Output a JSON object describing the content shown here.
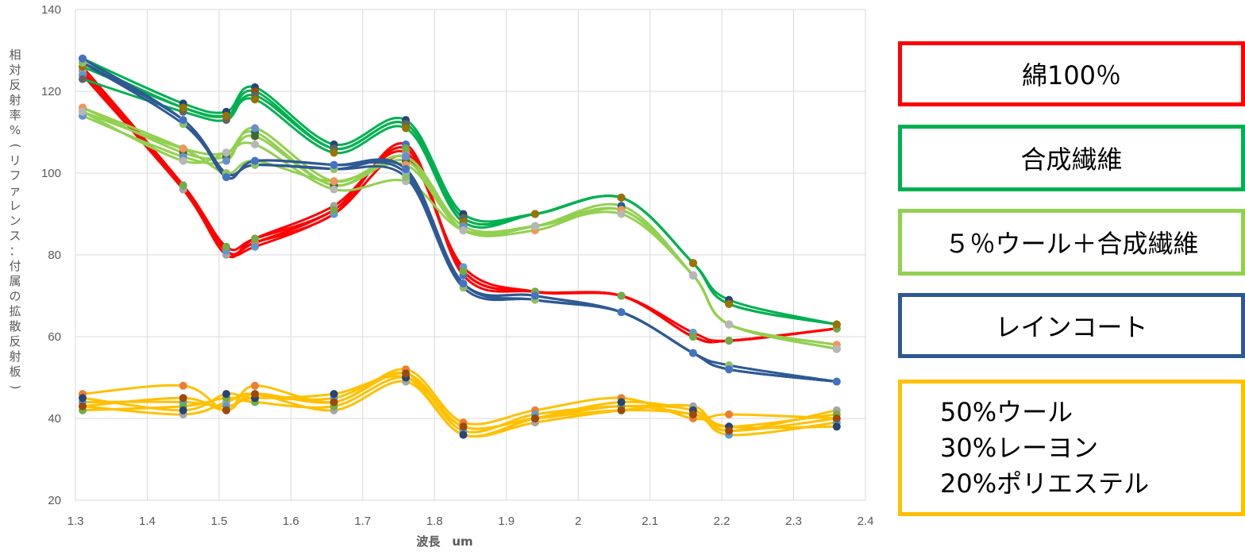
{
  "chart_data": {
    "type": "line",
    "xlabel": "波長　um",
    "ylabel": "相対反射率%(リファレンス：付属の拡散反射板)",
    "xlim": [
      1.3,
      2.4
    ],
    "ylim": [
      20,
      140
    ],
    "xticks": [
      "1.3",
      "1.4",
      "1.5",
      "1.6",
      "1.7",
      "1.8",
      "1.9",
      "2",
      "2.1",
      "2.2",
      "2.3",
      "2.4"
    ],
    "yticks": [
      "20",
      "40",
      "60",
      "80",
      "100",
      "120",
      "140"
    ],
    "grid": true,
    "legend_position": "right",
    "x": [
      1.31,
      1.45,
      1.51,
      1.55,
      1.66,
      1.76,
      1.84,
      1.94,
      2.06,
      2.16,
      2.21,
      2.36
    ],
    "groups": [
      {
        "label": "綿100％",
        "color": "#ff0000",
        "curves": [
          [
            125,
            97,
            81,
            83,
            90,
            107,
            75,
            71,
            70,
            60,
            59,
            62
          ],
          [
            124,
            96,
            81,
            83,
            91,
            106,
            76,
            71,
            70,
            60,
            59,
            62
          ],
          [
            125,
            96,
            80,
            84,
            92,
            105,
            76,
            71,
            70,
            60,
            59,
            62
          ],
          [
            124,
            97,
            81,
            82,
            90,
            104,
            77,
            71,
            70,
            61,
            59,
            62
          ],
          [
            126,
            97,
            82,
            84,
            91,
            106,
            76,
            71,
            70,
            60,
            59,
            62
          ]
        ]
      },
      {
        "label": "合成繊維",
        "color": "#00b050",
        "curves": [
          [
            128,
            117,
            115,
            121,
            107,
            113,
            90,
            90,
            94,
            78,
            69,
            63
          ],
          [
            127,
            116,
            114,
            120,
            106,
            112,
            89,
            90,
            94,
            78,
            68,
            63
          ],
          [
            123,
            115,
            113,
            119,
            106,
            112,
            89,
            90,
            94,
            78,
            68,
            63
          ],
          [
            126,
            116,
            114,
            118,
            105,
            111,
            88,
            90,
            94,
            78,
            68,
            63
          ]
        ]
      },
      {
        "label": "５％ウール＋合成繊維",
        "color": "#92d050",
        "curves": [
          [
            115,
            106,
            105,
            110,
            97,
            104,
            86,
            87,
            92,
            75,
            63,
            57
          ],
          [
            116,
            105,
            104,
            109,
            97,
            103,
            86,
            87,
            91,
            75,
            63,
            57
          ],
          [
            114,
            104,
            103,
            111,
            98,
            104,
            87,
            87,
            91,
            75,
            63,
            58
          ],
          [
            116,
            106,
            100,
            103,
            98,
            102,
            86,
            86,
            91,
            75,
            63,
            58
          ],
          [
            115,
            103,
            105,
            107,
            96,
            98,
            86,
            87,
            90,
            75,
            63,
            57
          ]
        ]
      },
      {
        "label": "レインコート",
        "color": "#2e5993",
        "curves": [
          [
            127,
            113,
            100,
            102,
            101,
            101,
            73,
            69,
            66,
            56,
            52,
            49
          ],
          [
            127,
            113,
            99,
            103,
            102,
            100,
            73,
            70,
            66,
            56,
            52,
            49
          ],
          [
            127,
            112,
            100,
            102,
            101,
            99,
            72,
            69,
            66,
            56,
            53,
            49
          ],
          [
            128,
            113,
            99,
            103,
            102,
            101,
            73,
            70,
            66,
            56,
            52,
            49
          ]
        ]
      },
      {
        "label": "50%ウール\n30%レーヨン\n20%ポリエステル",
        "color": "#ffc000",
        "curves": [
          [
            46,
            48,
            42,
            48,
            44,
            52,
            39,
            42,
            45,
            40,
            41,
            40
          ],
          [
            43,
            41,
            44,
            46,
            42,
            49,
            36,
            39,
            42,
            43,
            37,
            42
          ],
          [
            44,
            44,
            43,
            45,
            45,
            51,
            37,
            41,
            43,
            42,
            36,
            39
          ],
          [
            42,
            43,
            45,
            44,
            43,
            50,
            38,
            40,
            43,
            41,
            38,
            41
          ],
          [
            45,
            42,
            46,
            45,
            46,
            50,
            36,
            40,
            44,
            42,
            38,
            38
          ],
          [
            43,
            45,
            42,
            46,
            44,
            51,
            38,
            40,
            42,
            41,
            37,
            40
          ]
        ]
      }
    ]
  },
  "legend": {
    "items": [
      {
        "text": "綿100％",
        "color": "#ff0000"
      },
      {
        "text": "合成繊維",
        "color": "#00b050"
      },
      {
        "text": "５％ウール＋合成繊維",
        "color": "#92d050"
      },
      {
        "text": "レインコート",
        "color": "#2e5993"
      }
    ],
    "multi": {
      "lines": [
        "50%ウール",
        "30%レーヨン",
        "20%ポリエステル"
      ],
      "color": "#ffc000"
    }
  }
}
